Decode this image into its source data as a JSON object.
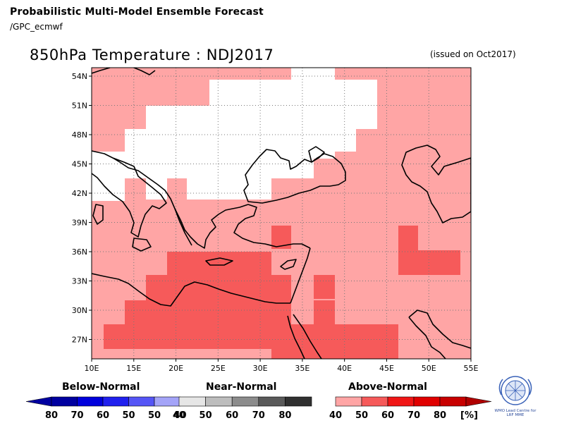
{
  "header": {
    "title": "Probabilistic Multi-Model Ensemble Forecast",
    "subtitle": "/GPC_ecmwf"
  },
  "map": {
    "title": "850hPa Temperature : NDJ2017",
    "issued": "(issued on Oct2017)",
    "lat_labels": [
      "54N",
      "51N",
      "48N",
      "45N",
      "42N",
      "39N",
      "36N",
      "33N",
      "30N",
      "27N"
    ],
    "lon_labels": [
      "10E",
      "15E",
      "20E",
      "25E",
      "30E",
      "35E",
      "40E",
      "45E",
      "50E",
      "55E"
    ],
    "colors": {
      "land_outline": "#000000",
      "grid": "#777777",
      "above_40_50": "#ffa5a5",
      "above_50_60": "#f65a5a",
      "above_60_70": "#f01616",
      "above_70_80": "#e00000",
      "above_80": "#c80000"
    }
  },
  "legend": {
    "below": {
      "caption": "Below-Normal",
      "labels": [
        "80",
        "70",
        "60",
        "50",
        "40"
      ],
      "colors": [
        "#0000a0",
        "#0000dc",
        "#2020ee",
        "#5555f6",
        "#a4a4f8"
      ]
    },
    "near": {
      "caption": "Near-Normal",
      "labels": [
        "40",
        "50",
        "60",
        "70",
        "80"
      ],
      "colors": [
        "#e6e6e6",
        "#bdbdbd",
        "#8c8c8c",
        "#5a5a5a",
        "#303030"
      ]
    },
    "above": {
      "caption": "Above-Normal",
      "labels": [
        "40",
        "50",
        "60",
        "70",
        "80"
      ],
      "colors": [
        "#ffa5a5",
        "#f65a5a",
        "#f01616",
        "#e00000",
        "#c80000"
      ],
      "unit": "[%]"
    }
  },
  "logo": {
    "text": "WMO Lead Centre for LRF MME"
  }
}
